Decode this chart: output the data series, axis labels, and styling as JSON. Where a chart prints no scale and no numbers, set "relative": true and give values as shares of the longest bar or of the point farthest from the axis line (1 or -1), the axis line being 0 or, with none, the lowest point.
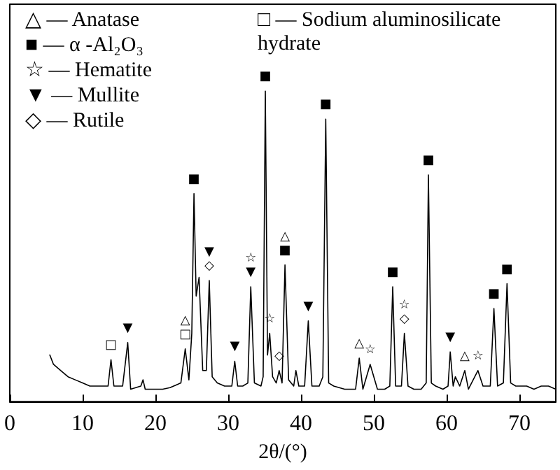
{
  "chart_data": {
    "type": "line",
    "relative": true,
    "xlabel": "2θ/(°)",
    "xlim": [
      0,
      75
    ],
    "xticks": [
      0,
      10,
      20,
      30,
      40,
      50,
      60,
      70
    ],
    "marker": "none",
    "color": "#000000",
    "x": [
      5.5,
      6,
      7,
      8,
      9,
      10,
      11,
      12,
      13.5,
      13.9,
      14.3,
      15.5,
      16.2,
      16.6,
      18,
      18.3,
      18.6,
      19,
      20,
      21,
      22,
      23.5,
      24.1,
      24.6,
      25.0,
      25.3,
      25.6,
      26.0,
      26.5,
      27.0,
      27.4,
      27.8,
      28.5,
      29.5,
      30.5,
      30.9,
      31.3,
      32,
      32.7,
      33.1,
      33.6,
      34.5,
      34.8,
      35.1,
      35.4,
      35.7,
      36.1,
      36.6,
      37.0,
      37.4,
      37.8,
      38.3,
      39,
      39.3,
      39.7,
      40.5,
      41.0,
      41.5,
      42.5,
      43.0,
      43.4,
      43.8,
      44.5,
      46,
      47.5,
      48.0,
      48.5,
      49.5,
      50.5,
      51.5,
      52.2,
      52.6,
      53.0,
      53.8,
      54.2,
      54.7,
      55.5,
      56.5,
      57.2,
      57.5,
      57.9,
      58.5,
      59.5,
      60.2,
      60.5,
      60.9,
      61.2,
      61.8,
      62.5,
      63,
      64.3,
      65,
      66.0,
      66.5,
      67.0,
      67.8,
      68.3,
      68.8,
      69.5,
      70,
      71,
      72,
      73,
      74,
      75
    ],
    "values": [
      0.15,
      0.12,
      0.1,
      0.08,
      0.07,
      0.06,
      0.05,
      0.05,
      0.05,
      0.135,
      0.05,
      0.05,
      0.19,
      0.04,
      0.05,
      0.07,
      0.04,
      0.04,
      0.04,
      0.04,
      0.045,
      0.06,
      0.17,
      0.07,
      0.22,
      0.67,
      0.34,
      0.4,
      0.1,
      0.1,
      0.39,
      0.08,
      0.06,
      0.05,
      0.05,
      0.13,
      0.05,
      0.05,
      0.06,
      0.37,
      0.06,
      0.05,
      0.08,
      1.0,
      0.15,
      0.22,
      0.08,
      0.06,
      0.1,
      0.06,
      0.44,
      0.07,
      0.05,
      0.1,
      0.05,
      0.05,
      0.26,
      0.05,
      0.05,
      0.08,
      0.91,
      0.06,
      0.05,
      0.04,
      0.04,
      0.14,
      0.04,
      0.12,
      0.04,
      0.04,
      0.05,
      0.37,
      0.05,
      0.05,
      0.22,
      0.05,
      0.04,
      0.04,
      0.06,
      0.73,
      0.06,
      0.05,
      0.04,
      0.05,
      0.16,
      0.05,
      0.08,
      0.05,
      0.1,
      0.04,
      0.1,
      0.05,
      0.05,
      0.3,
      0.05,
      0.06,
      0.38,
      0.06,
      0.05,
      0.05,
      0.05,
      0.04,
      0.05,
      0.05,
      0.04
    ],
    "annotations": [
      "△ — Anatase",
      "■ — α -Al₂O₃",
      "☆ — Hematite",
      "▼ — Mullite",
      "◇ — Rutile",
      "□ — Sodium aluminosilicate hydrate",
      {
        "text": "□",
        "x": 13.9,
        "y": 0.135
      },
      {
        "text": "▼",
        "x": 16.2,
        "y": 0.19
      },
      {
        "text": "□",
        "x": 24.1,
        "y": 0.17
      },
      {
        "text": "△",
        "x": 24.1,
        "y": 0.17
      },
      {
        "text": "■",
        "x": 25.3,
        "y": 0.67
      },
      {
        "text": "◇",
        "x": 27.4,
        "y": 0.39
      },
      {
        "text": "▼",
        "x": 27.4,
        "y": 0.39
      },
      {
        "text": "▼",
        "x": 30.9,
        "y": 0.13
      },
      {
        "text": "▼",
        "x": 33.1,
        "y": 0.37
      },
      {
        "text": "☆",
        "x": 33.1,
        "y": 0.37
      },
      {
        "text": "■",
        "x": 35.1,
        "y": 1.0
      },
      {
        "text": "☆",
        "x": 35.7,
        "y": 0.22
      },
      {
        "text": "◇",
        "x": 37.0,
        "y": 0.1
      },
      {
        "text": "■",
        "x": 37.8,
        "y": 0.44
      },
      {
        "text": "△",
        "x": 37.8,
        "y": 0.44
      },
      {
        "text": "▼",
        "x": 41.0,
        "y": 0.26
      },
      {
        "text": "■",
        "x": 43.4,
        "y": 0.91
      },
      {
        "text": "△",
        "x": 48.0,
        "y": 0.14
      },
      {
        "text": "☆",
        "x": 49.5,
        "y": 0.12
      },
      {
        "text": "■",
        "x": 52.6,
        "y": 0.37
      },
      {
        "text": "◇",
        "x": 54.2,
        "y": 0.22
      },
      {
        "text": "☆",
        "x": 54.2,
        "y": 0.22
      },
      {
        "text": "■",
        "x": 57.5,
        "y": 0.73
      },
      {
        "text": "▼",
        "x": 60.5,
        "y": 0.16
      },
      {
        "text": "△",
        "x": 62.5,
        "y": 0.1
      },
      {
        "text": "☆",
        "x": 64.3,
        "y": 0.1
      },
      {
        "text": "■",
        "x": 66.5,
        "y": 0.3
      },
      {
        "text": "■",
        "x": 68.3,
        "y": 0.38
      }
    ]
  }
}
